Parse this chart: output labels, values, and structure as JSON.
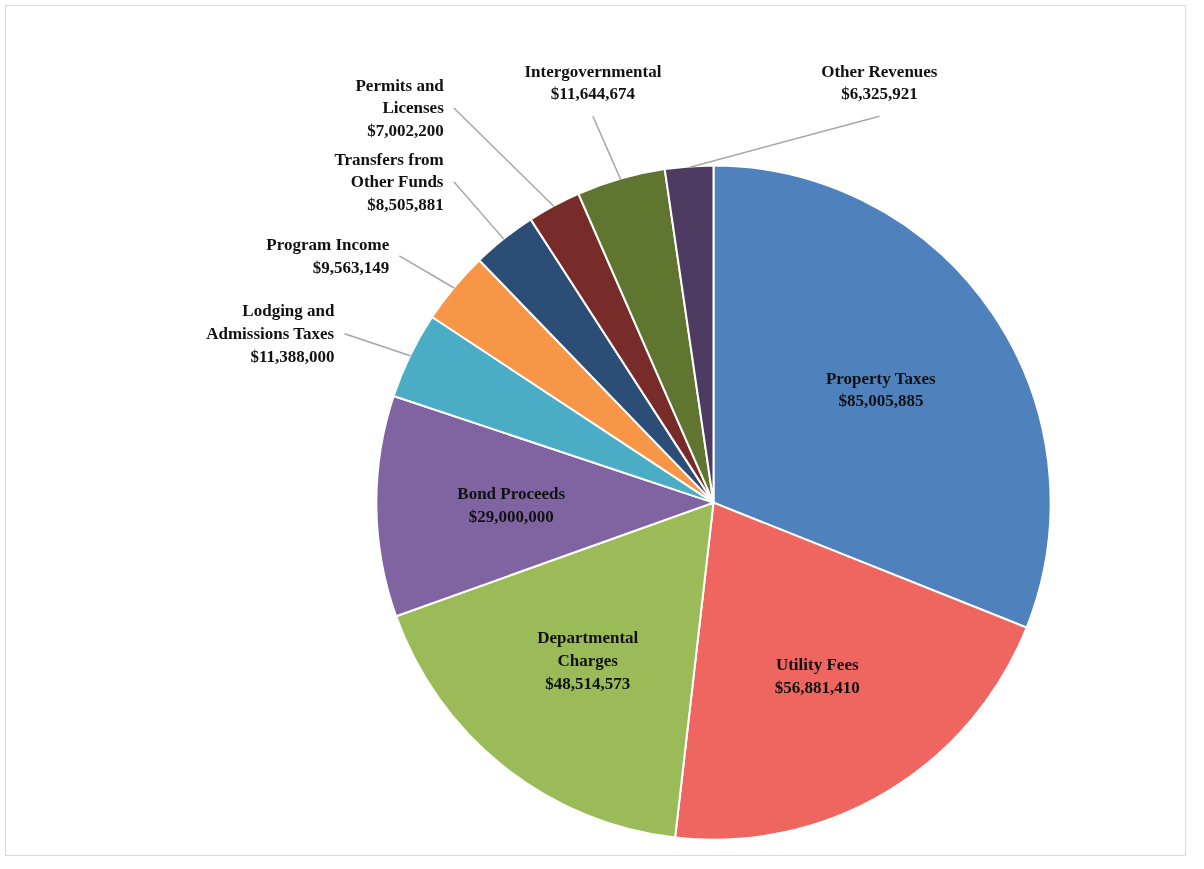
{
  "chart_data": {
    "type": "pie",
    "categories": [
      "Property Taxes",
      "Utility Fees",
      "Departmental Charges",
      "Bond Proceeds",
      "Lodging and Admissions Taxes",
      "Program Income",
      "Transfers from Other Funds",
      "Permits and Licenses",
      "Intergovernmental",
      "Other Revenues"
    ],
    "values": [
      85005885,
      56881410,
      48514573,
      29000000,
      11388000,
      9563149,
      8505881,
      7002200,
      11644674,
      6325921
    ],
    "value_labels": [
      "$85,005,885",
      "$56,881,410",
      "$48,514,573",
      "$29,000,000",
      "$11,388,000",
      "$9,563,149",
      "$8,505,881",
      "$7,002,200",
      "$11,644,674",
      "$6,325,921"
    ],
    "colors": [
      "#4f81bd",
      "#ef6661",
      "#9bbb59",
      "#8064a2",
      "#4bacc6",
      "#f79646",
      "#2c4d75",
      "#772c2a",
      "#5f7530",
      "#4d3b62"
    ]
  }
}
